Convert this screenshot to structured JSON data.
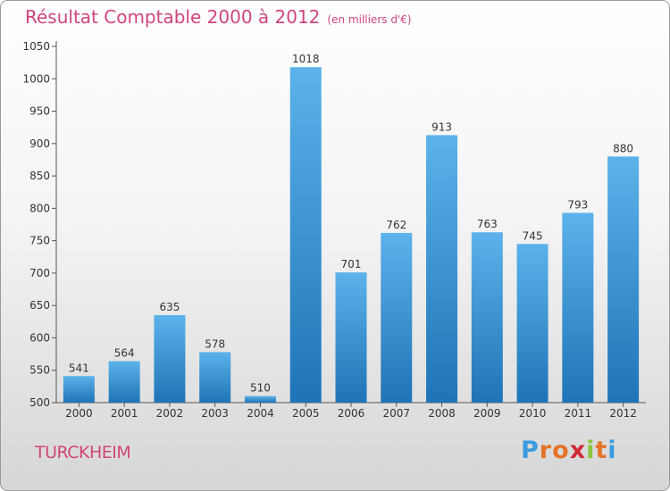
{
  "header": {
    "title": "Résultat Comptable 2000 à 2012",
    "subtitle": "(en milliers d'€)"
  },
  "footer": {
    "commune": "TURCKHEIM",
    "logo_letters": [
      "P",
      "r",
      "o",
      "x",
      "i",
      "t",
      "i"
    ],
    "logo_colors": [
      "#3a9be0",
      "#e5732a",
      "#e5732a",
      "#d12b3a",
      "#8dc63f",
      "#e5732a",
      "#3a9be0"
    ]
  },
  "colors": {
    "bar_top": "#5cb2ea",
    "bar_bottom": "#1f74b7",
    "text": "#333333",
    "title": "#d0457a"
  },
  "chart_data": {
    "type": "bar",
    "categories": [
      "2000",
      "2001",
      "2002",
      "2003",
      "2004",
      "2005",
      "2006",
      "2007",
      "2008",
      "2009",
      "2010",
      "2011",
      "2012"
    ],
    "values": [
      541,
      564,
      635,
      578,
      510,
      1018,
      701,
      762,
      913,
      763,
      745,
      793,
      880
    ],
    "ylim": [
      500,
      1050
    ],
    "yticks": [
      500,
      550,
      600,
      650,
      700,
      750,
      800,
      850,
      900,
      950,
      1000,
      1050
    ],
    "grid": false,
    "data_labels": true
  }
}
